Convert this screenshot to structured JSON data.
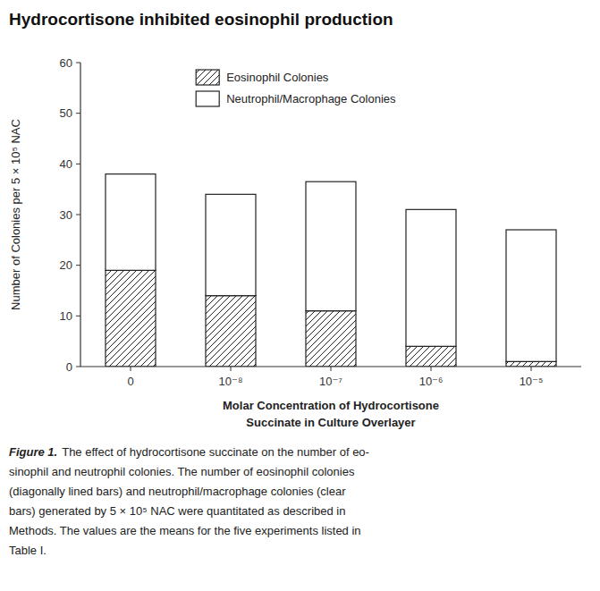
{
  "chart_data": {
    "type": "bar",
    "stacked": true,
    "title": "Hydrocortisone inhibited eosinophil production",
    "categories": [
      "0",
      "10⁻⁸",
      "10⁻⁷",
      "10⁻⁶",
      "10⁻⁵"
    ],
    "series": [
      {
        "name": "Eosinophil Colonies",
        "color": "#ffffff",
        "values": [
          19,
          14,
          11,
          4,
          1
        ]
      },
      {
        "name": "Neutrophil/Macrophage Colonies",
        "color": "#ffffff",
        "values": [
          19,
          20,
          25.5,
          27,
          26
        ]
      }
    ],
    "ylabel": "Number of Colonies per 5 × 10⁵ NAC",
    "xlabel": [
      "Molar Concentration of Hydrocortisone",
      "Succinate in Culture Overlayer"
    ],
    "ylim": [
      0,
      60
    ],
    "yticks": [
      0,
      10,
      20,
      30,
      40,
      50,
      60
    ],
    "grid": false,
    "legend": "upper left",
    "caption": "Figure 1.",
    "caption_text": [
      "The effect of hydrocortisone succinate on the number of eo-",
      "sinophil and neutrophil colonies. The number of eosinophil colonies",
      "(diagonally lined bars) and neutrophil/macrophage colonies (clear",
      "bars) generated by 5 × 10⁵ NAC were quantitated as described in",
      "Methods. The values are the means for the five experiments listed in",
      "Table I."
    ]
  }
}
